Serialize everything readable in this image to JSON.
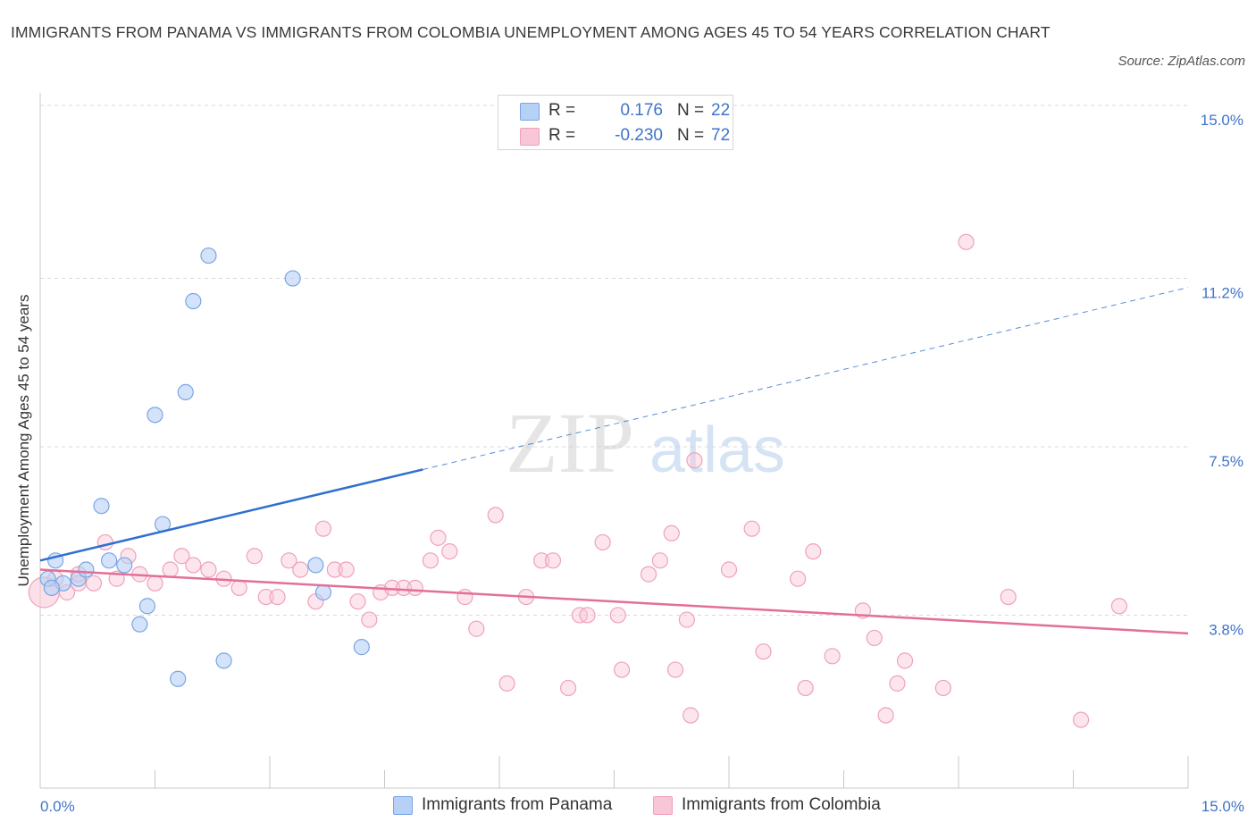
{
  "title": "IMMIGRANTS FROM PANAMA VS IMMIGRANTS FROM COLOMBIA UNEMPLOYMENT AMONG AGES 45 TO 54 YEARS CORRELATION CHART",
  "source": "Source: ZipAtlas.com",
  "watermark": {
    "zip": "ZIP",
    "atlas": "atlas"
  },
  "colors": {
    "panama_fill": "#b7d0f5",
    "panama_stroke": "#7aa6e3",
    "panama_line": "#2f6fce",
    "colombia_fill": "#f8c6d6",
    "colombia_stroke": "#eea2ba",
    "colombia_line": "#e36f98",
    "tick_text": "#3f74c9",
    "grid": "#d9d9d9"
  },
  "legend": {
    "rows": [
      {
        "r_label": "R =",
        "r_value": "0.176",
        "n_label": "N =",
        "n_value": "22"
      },
      {
        "r_label": "R =",
        "r_value": "-0.230",
        "n_label": "N =",
        "n_value": "72"
      }
    ]
  },
  "bottom_legend": [
    {
      "label": "Immigrants from Panama"
    },
    {
      "label": "Immigrants from Colombia"
    }
  ],
  "chart_data": {
    "type": "scatter",
    "title": "IMMIGRANTS FROM PANAMA VS IMMIGRANTS FROM COLOMBIA UNEMPLOYMENT AMONG AGES 45 TO 54 YEARS CORRELATION CHART",
    "xlabel": "",
    "ylabel": "Unemployment Among Ages 45 to 54 years",
    "xlim": [
      0,
      15
    ],
    "ylim": [
      0,
      15
    ],
    "x_ticks": [
      0.0,
      15.0
    ],
    "x_tick_labels": [
      "0.0%",
      "15.0%"
    ],
    "y_ticks": [
      3.8,
      7.5,
      11.2,
      15.0
    ],
    "y_tick_labels": [
      "3.8%",
      "7.5%",
      "11.2%",
      "15.0%"
    ],
    "grid": true,
    "legend_position": "top-center",
    "series": [
      {
        "name": "Immigrants from Panama",
        "R": 0.176,
        "N": 22,
        "points": [
          [
            0.1,
            4.6
          ],
          [
            0.2,
            5.0
          ],
          [
            0.3,
            4.5
          ],
          [
            0.5,
            4.6
          ],
          [
            0.6,
            4.8
          ],
          [
            0.8,
            6.2
          ],
          [
            0.9,
            5.0
          ],
          [
            1.1,
            4.9
          ],
          [
            1.3,
            3.6
          ],
          [
            1.4,
            4.0
          ],
          [
            1.5,
            8.2
          ],
          [
            1.6,
            5.8
          ],
          [
            1.8,
            2.4
          ],
          [
            1.9,
            8.7
          ],
          [
            2.0,
            10.7
          ],
          [
            2.2,
            11.7
          ],
          [
            2.4,
            2.8
          ],
          [
            3.3,
            11.2
          ],
          [
            3.6,
            4.9
          ],
          [
            3.7,
            4.3
          ],
          [
            4.2,
            3.1
          ],
          [
            0.15,
            4.4
          ]
        ],
        "trend": {
          "x0": 0.0,
          "y0": 5.0,
          "x1": 5.0,
          "y1": 7.0,
          "x_dash_end": 15.0,
          "y_dash_end": 11.0
        }
      },
      {
        "name": "Immigrants from Colombia",
        "R": -0.23,
        "N": 72,
        "points": [
          [
            0.05,
            4.3
          ],
          [
            0.2,
            4.6
          ],
          [
            0.35,
            4.3
          ],
          [
            0.5,
            4.5
          ],
          [
            0.7,
            4.5
          ],
          [
            0.85,
            5.4
          ],
          [
            1.0,
            4.6
          ],
          [
            1.15,
            5.1
          ],
          [
            1.3,
            4.7
          ],
          [
            1.5,
            4.5
          ],
          [
            1.7,
            4.8
          ],
          [
            1.85,
            5.1
          ],
          [
            2.0,
            4.9
          ],
          [
            2.2,
            4.8
          ],
          [
            2.4,
            4.6
          ],
          [
            2.6,
            4.4
          ],
          [
            2.8,
            5.1
          ],
          [
            2.95,
            4.2
          ],
          [
            3.1,
            4.2
          ],
          [
            3.25,
            5.0
          ],
          [
            3.4,
            4.8
          ],
          [
            3.6,
            4.1
          ],
          [
            3.7,
            5.7
          ],
          [
            3.85,
            4.8
          ],
          [
            4.0,
            4.8
          ],
          [
            4.15,
            4.1
          ],
          [
            4.3,
            3.7
          ],
          [
            4.45,
            4.3
          ],
          [
            4.6,
            4.4
          ],
          [
            4.75,
            4.4
          ],
          [
            4.9,
            4.4
          ],
          [
            5.1,
            5.0
          ],
          [
            5.2,
            5.5
          ],
          [
            5.35,
            5.2
          ],
          [
            5.55,
            4.2
          ],
          [
            5.7,
            3.5
          ],
          [
            5.95,
            6.0
          ],
          [
            6.1,
            2.3
          ],
          [
            6.35,
            4.2
          ],
          [
            6.55,
            5.0
          ],
          [
            6.7,
            5.0
          ],
          [
            6.9,
            2.2
          ],
          [
            7.05,
            3.8
          ],
          [
            7.15,
            3.8
          ],
          [
            7.35,
            5.4
          ],
          [
            7.55,
            3.8
          ],
          [
            7.6,
            2.6
          ],
          [
            7.95,
            4.7
          ],
          [
            8.1,
            5.0
          ],
          [
            8.25,
            5.6
          ],
          [
            8.3,
            2.6
          ],
          [
            8.45,
            3.7
          ],
          [
            8.5,
            1.6
          ],
          [
            8.55,
            7.2
          ],
          [
            9.0,
            4.8
          ],
          [
            9.3,
            5.7
          ],
          [
            9.45,
            3.0
          ],
          [
            9.9,
            4.6
          ],
          [
            10.0,
            2.2
          ],
          [
            10.1,
            5.2
          ],
          [
            10.35,
            2.9
          ],
          [
            10.75,
            3.9
          ],
          [
            10.9,
            3.3
          ],
          [
            11.05,
            1.6
          ],
          [
            11.2,
            2.3
          ],
          [
            11.3,
            2.8
          ],
          [
            11.8,
            2.2
          ],
          [
            12.1,
            12.0
          ],
          [
            12.65,
            4.2
          ],
          [
            13.6,
            1.5
          ],
          [
            14.1,
            4.0
          ],
          [
            0.5,
            4.7
          ]
        ],
        "trend": {
          "x0": 0.0,
          "y0": 4.8,
          "x1": 15.0,
          "y1": 3.4
        }
      }
    ]
  }
}
